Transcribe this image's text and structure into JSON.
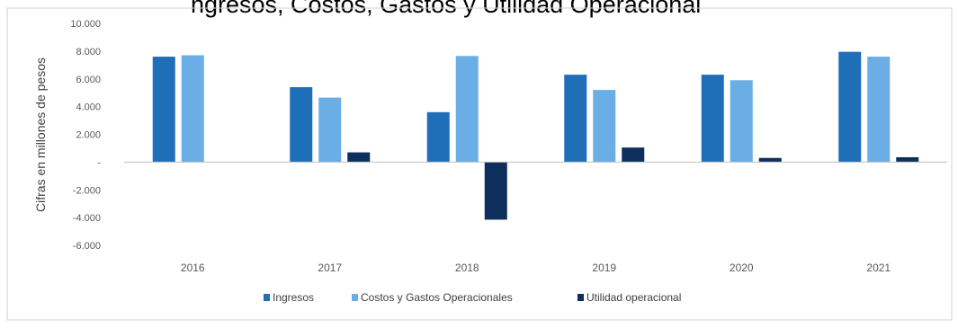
{
  "title_fragment": "ngresos, Costos, Gastos y Utilidad Operacional",
  "chart_data": {
    "type": "bar",
    "ylabel": "Cifras en millones de pesos",
    "xlabel": "",
    "categories": [
      "2016",
      "2017",
      "2018",
      "2019",
      "2020",
      "2021"
    ],
    "ylim": [
      -6000,
      10000
    ],
    "yticks": [
      10000,
      8000,
      6000,
      4000,
      2000,
      0,
      -2000,
      -4000,
      -6000
    ],
    "ytick_labels": [
      "10.000",
      "8.000",
      "6.000",
      "4.000",
      "2.000",
      "-",
      "-2.000",
      "-4.000",
      "-6.000"
    ],
    "legend_position": "bottom",
    "grid": false,
    "series": [
      {
        "name": "Ingresos",
        "color": "#1F6FB8",
        "values": [
          7600,
          5400,
          3600,
          6300,
          6300,
          7950
        ]
      },
      {
        "name": "Costos y Gastos Operacionales",
        "color": "#6AAEE5",
        "values": [
          7700,
          4650,
          7650,
          5200,
          5900,
          7600
        ]
      },
      {
        "name": "Utilidad operacional",
        "color": "#0E2F5B",
        "values": [
          0,
          700,
          -4150,
          1050,
          300,
          350
        ]
      }
    ]
  }
}
